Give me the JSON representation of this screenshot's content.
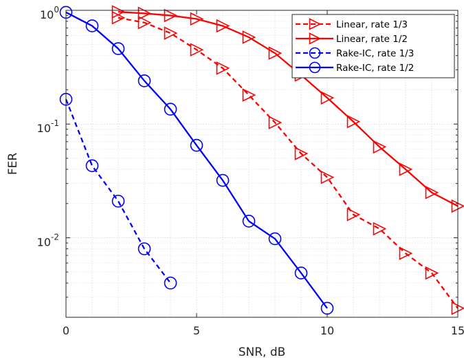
{
  "chart_data": {
    "type": "line",
    "title": "",
    "xlabel": "SNR, dB",
    "ylabel": "FER",
    "x_scale": "linear",
    "y_scale": "log",
    "xlim": [
      0,
      15
    ],
    "ylim": [
      0.002,
      1
    ],
    "grid": true,
    "legend_position": "top-right",
    "x_ticks": [
      {
        "value": 0,
        "label": "0"
      },
      {
        "value": 5,
        "label": "5"
      },
      {
        "value": 10,
        "label": "10"
      },
      {
        "value": 15,
        "label": "15"
      }
    ],
    "y_ticks": [
      {
        "value": 1,
        "base": "10",
        "exp": "0"
      },
      {
        "value": 0.1,
        "base": "10",
        "exp": "-1"
      },
      {
        "value": 0.01,
        "base": "10",
        "exp": "-2"
      }
    ],
    "series": [
      {
        "name": "Linear, rate 1/3",
        "color": "#ff0000",
        "line_style": "dashed",
        "marker": "triangle-right",
        "x": [
          2,
          3,
          4,
          5,
          6,
          7,
          8,
          9,
          10,
          11,
          12,
          13,
          14,
          15
        ],
        "y": [
          0.86,
          0.78,
          0.63,
          0.45,
          0.31,
          0.18,
          0.103,
          0.055,
          0.034,
          0.016,
          0.012,
          0.0073,
          0.0049,
          0.0024
        ]
      },
      {
        "name": "Linear, rate 1/2",
        "color": "#ff0000",
        "line_style": "solid",
        "marker": "triangle-right",
        "x": [
          2,
          3,
          4,
          5,
          6,
          7,
          8,
          9,
          10,
          11,
          12,
          13,
          14,
          15
        ],
        "y": [
          0.97,
          0.94,
          0.9,
          0.84,
          0.73,
          0.58,
          0.42,
          0.27,
          0.17,
          0.105,
          0.063,
          0.04,
          0.025,
          0.019
        ]
      },
      {
        "name": "Rake-IC, rate 1/3",
        "color": "#0000ff",
        "line_style": "dashed",
        "marker": "circle",
        "x": [
          0,
          1,
          2,
          3,
          4
        ],
        "y": [
          0.165,
          0.043,
          0.021,
          0.008,
          0.004
        ]
      },
      {
        "name": "Rake-IC, rate 1/2",
        "color": "#0000ff",
        "line_style": "solid",
        "marker": "circle",
        "x": [
          0,
          1,
          2,
          3,
          4,
          5,
          6,
          7,
          8,
          9,
          10
        ],
        "y": [
          0.96,
          0.73,
          0.46,
          0.24,
          0.135,
          0.065,
          0.032,
          0.014,
          0.0098,
          0.0049,
          0.0024
        ]
      }
    ]
  }
}
